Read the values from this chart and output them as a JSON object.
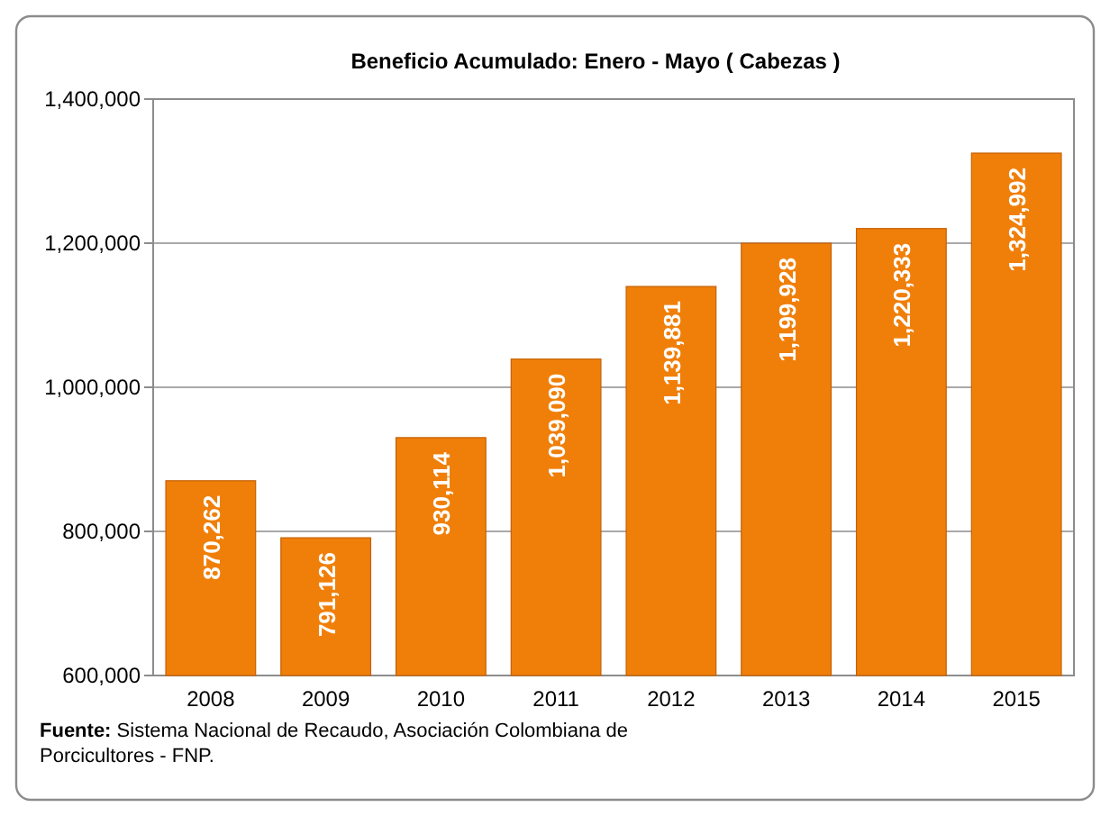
{
  "chart_data": {
    "type": "bar",
    "title": "Beneficio Acumulado: Enero - Mayo ( Cabezas )",
    "categories": [
      "2008",
      "2009",
      "2010",
      "2011",
      "2012",
      "2013",
      "2014",
      "2015"
    ],
    "values": [
      870262,
      791126,
      930114,
      1039090,
      1139881,
      1199928,
      1220333,
      1324992
    ],
    "color": "#f07f0a",
    "ylim": [
      600000,
      1400000
    ],
    "yticks": [
      {
        "value": 600000,
        "label": "600,000"
      },
      {
        "value": 800000,
        "label": "800,000"
      },
      {
        "value": 1000000,
        "label": "1,000,000"
      },
      {
        "value": 1200000,
        "label": "1,200,000"
      },
      {
        "value": 1400000,
        "label": "1,400,000"
      }
    ],
    "grid": "y",
    "value_labels": [
      "870,262",
      "791,126",
      "930,114",
      "1,039,090",
      "1,139,881",
      "1,199,928",
      "1,220,333",
      "1,324,992"
    ],
    "annotations": [
      "Fuente: Sistema Nacional de Recaudo, Asociación Colombiana de Porcicultores - FNP."
    ]
  }
}
